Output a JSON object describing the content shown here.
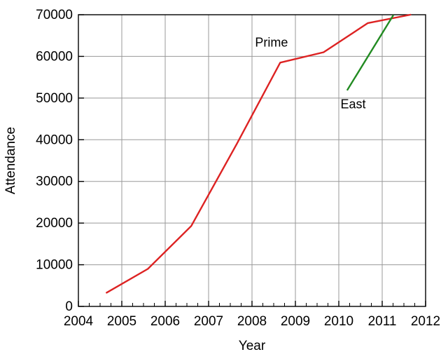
{
  "chart_data": {
    "type": "line",
    "title": "",
    "xlabel": "Year",
    "ylabel": "Attendance",
    "xlim": [
      2004,
      2012
    ],
    "ylim": [
      0,
      70000
    ],
    "x_ticks": [
      2004,
      2005,
      2006,
      2007,
      2008,
      2009,
      2010,
      2011,
      2012
    ],
    "y_ticks": [
      0,
      10000,
      20000,
      30000,
      40000,
      50000,
      60000,
      70000
    ],
    "x_minor_tick_interval": 0.25,
    "grid": true,
    "legend_position": "inline-annotations",
    "series": [
      {
        "name": "Prime",
        "color": "#dd2222",
        "points": [
          [
            2004.65,
            3300
          ],
          [
            2005.6,
            9000
          ],
          [
            2006.6,
            19300
          ],
          [
            2007.65,
            39000
          ],
          [
            2008.65,
            58500
          ],
          [
            2009.65,
            61000
          ],
          [
            2010.67,
            68000
          ],
          [
            2011.65,
            70000
          ]
        ],
        "label_anchor": {
          "x": 2008.45,
          "y": 63200
        }
      },
      {
        "name": "East",
        "color": "#228b22",
        "points": [
          [
            2010.2,
            52000
          ],
          [
            2011.25,
            69800
          ]
        ],
        "label_anchor": {
          "x": 2010.33,
          "y": 48500
        }
      }
    ]
  },
  "colors": {
    "axis": "#000000",
    "gridline": "#999999",
    "background": "#ffffff",
    "prime_line": "#dd2222",
    "east_line": "#228b22"
  }
}
